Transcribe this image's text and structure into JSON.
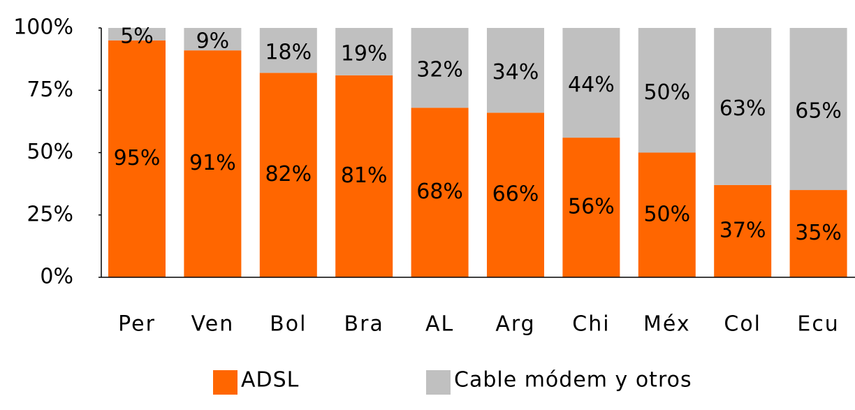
{
  "chart_data": {
    "type": "stacked_bar",
    "categories": [
      "Per",
      "Ven",
      "Bol",
      "Bra",
      "AL",
      "Arg",
      "Chi",
      "Méx",
      "Col",
      "Ecu"
    ],
    "series": [
      {
        "name": "ADSL",
        "color": "#ff6600",
        "values": [
          95,
          91,
          82,
          81,
          68,
          66,
          56,
          50,
          37,
          35
        ],
        "value_labels": [
          "95%",
          "91%",
          "82%",
          "81%",
          "68%",
          "66%",
          "56%",
          "50%",
          "37%",
          "35%"
        ]
      },
      {
        "name": "Cable módem y otros",
        "color": "#c0c0c0",
        "values": [
          5,
          9,
          18,
          19,
          32,
          34,
          44,
          50,
          63,
          65
        ],
        "value_labels": [
          "5%",
          "9%",
          "18%",
          "19%",
          "32%",
          "34%",
          "44%",
          "50%",
          "63%",
          "65%"
        ]
      }
    ],
    "ylim": [
      0,
      100
    ],
    "yticks": [
      {
        "value": 0,
        "label": "0%"
      },
      {
        "value": 25,
        "label": "25%"
      },
      {
        "value": 50,
        "label": "50%"
      },
      {
        "value": 75,
        "label": "75%"
      },
      {
        "value": 100,
        "label": "100%"
      }
    ],
    "grid": false,
    "legend": "bottom"
  }
}
